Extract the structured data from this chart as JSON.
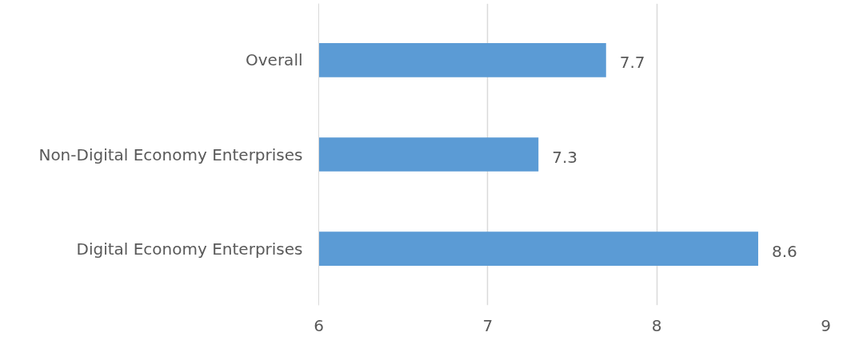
{
  "chart_data": {
    "type": "bar",
    "orientation": "horizontal",
    "categories": [
      "Overall",
      "Non-Digital Economy Enterprises",
      "Digital Economy Enterprises"
    ],
    "values": [
      7.7,
      7.3,
      8.6
    ],
    "color": "#5b9bd5",
    "xlim": [
      6,
      9
    ],
    "xticks": [
      6,
      7,
      8,
      9
    ],
    "grid": "x",
    "data_labels": true
  }
}
